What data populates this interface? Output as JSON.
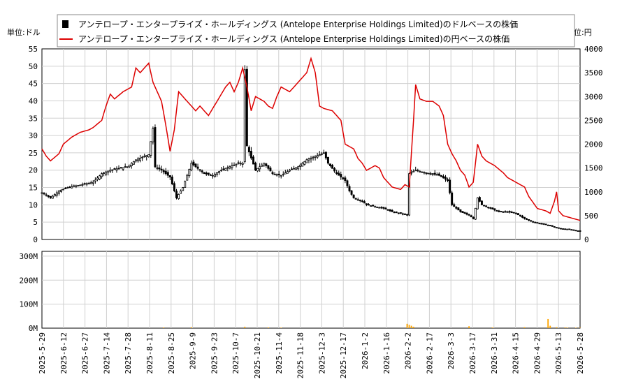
{
  "chart_data": [
    {
      "type": "candlestick+line",
      "title": "",
      "y_left_unit": "単位:ドル",
      "y_right_unit": "単位:円",
      "y_left_lim": [
        0,
        55
      ],
      "y_right_lim": [
        0,
        4000
      ],
      "y_left_ticks": [
        "0",
        "5",
        "10",
        "15",
        "20",
        "25",
        "30",
        "35",
        "40",
        "45",
        "50",
        "55"
      ],
      "y_right_ticks": [
        "0",
        "500",
        "1000",
        "1500",
        "2000",
        "2500",
        "3000",
        "3500",
        "4000"
      ],
      "grid": true,
      "legend_position": "top-center",
      "series": [
        {
          "name": "アンテロープ・エンタープライズ・ホールディングス (Antelope Enterprise Holdings Limited)のドルベースの株価",
          "kind": "candlestick",
          "color": "#000000"
        },
        {
          "name": "アンテロープ・エンタープライズ・ホールディングス (Antelope Enterprise Holdings Limited)の円ベースの株価",
          "kind": "line",
          "color": "#dd0000"
        }
      ],
      "x_tick_labels": [
        "2025-5-29",
        "2025-6-12",
        "2025-6-27",
        "2025-7-14",
        "2025-7-28",
        "2025-8-11",
        "2025-8-25",
        "2025-9-9",
        "2025-9-23",
        "2025-10-7",
        "2025-10-21",
        "2025-11-4",
        "2025-11-18",
        "2025-12-3",
        "2025-12-17",
        "2026-1-2",
        "2026-1-16",
        "2026-2-2",
        "2026-2-17",
        "2026-3-3",
        "2026-3-17",
        "2026-3-31",
        "2026-4-15",
        "2026-4-29",
        "2026-5-13",
        "2026-5-28"
      ],
      "x_index_range": [
        0,
        252
      ],
      "usd_close_points": [
        [
          0,
          13.5
        ],
        [
          4,
          12
        ],
        [
          8,
          14
        ],
        [
          12,
          15
        ],
        [
          16,
          15.5
        ],
        [
          20,
          16
        ],
        [
          24,
          16.5
        ],
        [
          28,
          19
        ],
        [
          32,
          20
        ],
        [
          36,
          20.5
        ],
        [
          40,
          21
        ],
        [
          44,
          23
        ],
        [
          48,
          24
        ],
        [
          50,
          24.5
        ],
        [
          52,
          32
        ],
        [
          53,
          21
        ],
        [
          56,
          20
        ],
        [
          60,
          18
        ],
        [
          63,
          12
        ],
        [
          66,
          15
        ],
        [
          70,
          22
        ],
        [
          72,
          21
        ],
        [
          76,
          19
        ],
        [
          80,
          18.5
        ],
        [
          84,
          20
        ],
        [
          88,
          21
        ],
        [
          92,
          22
        ],
        [
          94,
          22
        ],
        [
          95,
          49
        ],
        [
          96,
          27
        ],
        [
          100,
          20
        ],
        [
          104,
          22
        ],
        [
          108,
          19
        ],
        [
          112,
          18.5
        ],
        [
          116,
          20
        ],
        [
          120,
          21
        ],
        [
          124,
          23
        ],
        [
          128,
          24
        ],
        [
          132,
          25
        ],
        [
          134,
          22
        ],
        [
          138,
          19
        ],
        [
          140,
          18
        ],
        [
          142,
          17
        ],
        [
          144,
          14
        ],
        [
          146,
          12
        ],
        [
          150,
          11
        ],
        [
          152,
          10
        ],
        [
          156,
          9.5
        ],
        [
          160,
          9
        ],
        [
          164,
          8
        ],
        [
          168,
          7.5
        ],
        [
          171,
          7
        ],
        [
          172,
          19
        ],
        [
          175,
          20
        ],
        [
          178,
          19.5
        ],
        [
          182,
          19
        ],
        [
          186,
          18.5
        ],
        [
          190,
          17
        ],
        [
          192,
          10
        ],
        [
          196,
          8
        ],
        [
          200,
          7
        ],
        [
          202,
          6
        ],
        [
          204,
          12
        ],
        [
          206,
          10
        ],
        [
          210,
          9
        ],
        [
          214,
          8
        ],
        [
          218,
          8
        ],
        [
          222,
          7.5
        ],
        [
          226,
          6
        ],
        [
          230,
          5
        ],
        [
          234,
          4.5
        ],
        [
          238,
          4
        ],
        [
          240,
          3.5
        ],
        [
          242,
          3.2
        ],
        [
          246,
          3
        ],
        [
          250,
          2.5
        ],
        [
          252,
          2.5
        ]
      ],
      "jpy_line_points": [
        [
          0,
          1900
        ],
        [
          2,
          1750
        ],
        [
          4,
          1650
        ],
        [
          8,
          1800
        ],
        [
          10,
          2000
        ],
        [
          14,
          2150
        ],
        [
          18,
          2250
        ],
        [
          22,
          2300
        ],
        [
          24,
          2350
        ],
        [
          28,
          2500
        ],
        [
          30,
          2800
        ],
        [
          32,
          3050
        ],
        [
          34,
          2950
        ],
        [
          38,
          3100
        ],
        [
          42,
          3200
        ],
        [
          44,
          3600
        ],
        [
          46,
          3500
        ],
        [
          48,
          3600
        ],
        [
          50,
          3700
        ],
        [
          52,
          3300
        ],
        [
          54,
          3100
        ],
        [
          56,
          2900
        ],
        [
          58,
          2400
        ],
        [
          60,
          1850
        ],
        [
          62,
          2300
        ],
        [
          64,
          3100
        ],
        [
          68,
          2900
        ],
        [
          72,
          2700
        ],
        [
          74,
          2800
        ],
        [
          78,
          2600
        ],
        [
          82,
          2900
        ],
        [
          86,
          3200
        ],
        [
          88,
          3300
        ],
        [
          90,
          3100
        ],
        [
          92,
          3300
        ],
        [
          94,
          3600
        ],
        [
          96,
          3200
        ],
        [
          98,
          2700
        ],
        [
          100,
          3000
        ],
        [
          104,
          2900
        ],
        [
          106,
          2800
        ],
        [
          108,
          2750
        ],
        [
          110,
          3000
        ],
        [
          112,
          3200
        ],
        [
          116,
          3100
        ],
        [
          120,
          3300
        ],
        [
          124,
          3500
        ],
        [
          126,
          3800
        ],
        [
          128,
          3500
        ],
        [
          130,
          2800
        ],
        [
          132,
          2750
        ],
        [
          136,
          2700
        ],
        [
          140,
          2500
        ],
        [
          142,
          2000
        ],
        [
          146,
          1900
        ],
        [
          148,
          1700
        ],
        [
          150,
          1600
        ],
        [
          152,
          1450
        ],
        [
          156,
          1550
        ],
        [
          158,
          1500
        ],
        [
          160,
          1300
        ],
        [
          162,
          1200
        ],
        [
          164,
          1100
        ],
        [
          168,
          1050
        ],
        [
          170,
          1150
        ],
        [
          172,
          1100
        ],
        [
          174,
          2500
        ],
        [
          175,
          3250
        ],
        [
          177,
          2950
        ],
        [
          180,
          2900
        ],
        [
          183,
          2900
        ],
        [
          186,
          2800
        ],
        [
          188,
          2600
        ],
        [
          190,
          2000
        ],
        [
          192,
          1800
        ],
        [
          194,
          1650
        ],
        [
          196,
          1450
        ],
        [
          198,
          1350
        ],
        [
          200,
          1100
        ],
        [
          202,
          1200
        ],
        [
          204,
          2000
        ],
        [
          206,
          1750
        ],
        [
          208,
          1650
        ],
        [
          212,
          1550
        ],
        [
          216,
          1400
        ],
        [
          218,
          1300
        ],
        [
          222,
          1200
        ],
        [
          226,
          1100
        ],
        [
          228,
          900
        ],
        [
          232,
          650
        ],
        [
          236,
          600
        ],
        [
          238,
          550
        ],
        [
          240,
          800
        ],
        [
          241,
          1000
        ],
        [
          242,
          600
        ],
        [
          244,
          500
        ],
        [
          248,
          450
        ],
        [
          252,
          400
        ]
      ]
    },
    {
      "type": "bar",
      "title": "",
      "ylabel": "",
      "y_lim": [
        0,
        320000000
      ],
      "y_ticks": [
        "0M",
        "100M",
        "200M",
        "300M"
      ],
      "color": "#ffa500",
      "volume_points": [
        [
          57,
          3000000
        ],
        [
          70,
          4000000
        ],
        [
          95,
          6000000
        ],
        [
          106,
          3000000
        ],
        [
          112,
          2000000
        ],
        [
          171,
          18000000
        ],
        [
          172,
          14000000
        ],
        [
          173,
          10000000
        ],
        [
          174,
          6000000
        ],
        [
          200,
          8000000
        ],
        [
          211,
          3000000
        ],
        [
          226,
          4000000
        ],
        [
          237,
          38000000
        ],
        [
          238,
          10000000
        ],
        [
          241,
          4000000
        ],
        [
          245,
          3000000
        ],
        [
          246,
          2000000
        ],
        [
          250,
          2000000
        ],
        [
          252,
          2000000
        ]
      ]
    }
  ]
}
